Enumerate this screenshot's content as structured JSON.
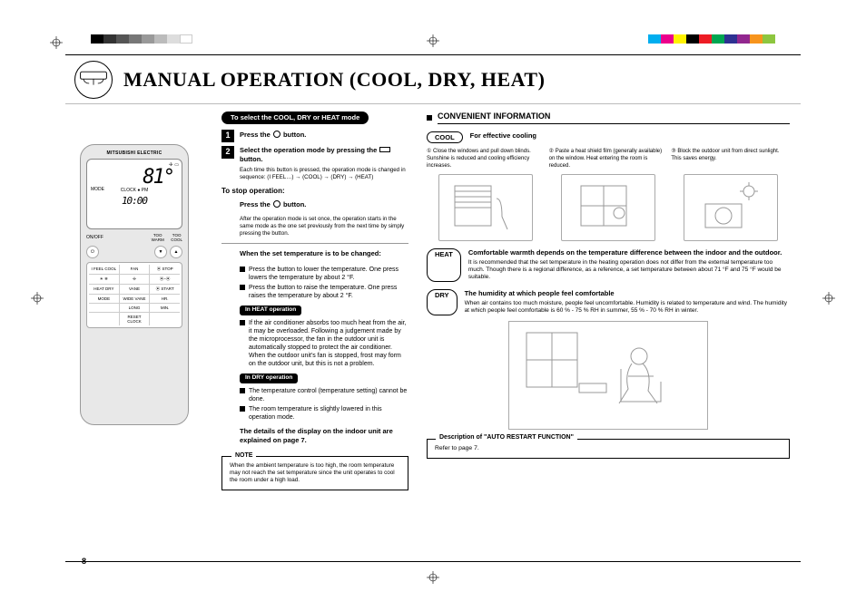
{
  "colorbar_left": [
    "#000",
    "#333",
    "#555",
    "#777",
    "#999",
    "#bbb",
    "#ddd",
    "#fff"
  ],
  "colorbar_right": [
    "#00aeef",
    "#ec008c",
    "#fff200",
    "#000",
    "#ed1c24",
    "#00a651",
    "#2e3192",
    "#92278f",
    "#f7941d",
    "#8dc63f"
  ],
  "header": {
    "title": "MANUAL OPERATION (COOL, DRY, HEAT)"
  },
  "remote": {
    "brand": "MITSUBISHI ELECTRIC",
    "temp": "81°",
    "clock_label": "CLOCK",
    "ampm": "PM",
    "clock": "10:00",
    "mode": "MODE",
    "row": {
      "onoff": "ON/OFF",
      "toowarm": "TOO\nWARM",
      "toocool": "TOO\nCOOL"
    },
    "grid": [
      [
        "I FEEL  COOL",
        "FAN",
        "⦿ STOP"
      ],
      [
        "☀ ❄",
        "✢",
        "⦿–⦿"
      ],
      [
        "HEAT  DRY",
        "VANE",
        "⦿ START"
      ],
      [
        "MODE",
        "WIDE VANE",
        "HR."
      ],
      [
        "",
        "LONG",
        "MIN."
      ],
      [
        "",
        "RESET   CLOCK",
        ""
      ]
    ]
  },
  "mid": {
    "pill": "To select the COOL, DRY or HEAT mode",
    "steps": [
      {
        "n": "1",
        "txt_a": "Press the",
        "txt_b": "button."
      },
      {
        "n": "2",
        "txt_a": "Select the operation mode by pressing the",
        "txt_b": "button."
      }
    ],
    "step2_note": "Each time this button is pressed, the operation mode is changed in sequence:  (I FEEL…) →  (COOL) →  (DRY) →  (HEAT)",
    "stop_head": "To stop operation:",
    "stop_txt_a": "Press the",
    "stop_txt_b": "button.",
    "stop_note": "After the operation mode is set once, the operation starts in the same mode as the one set previously from the next time by simply pressing the  button.",
    "change_head": "When the set temperature is to be changed:",
    "change_b1": "Press the  button to lower the temperature. One press lowers the temperature by about 2 °F.",
    "change_b2": "Press the  button to raise the temperature. One press raises the temperature by about 2 °F.",
    "heat_pill": "In HEAT operation",
    "heat_b": "If the air conditioner absorbs too much heat from the air, it may be overloaded. Following a judgement made by the microprocessor, the fan in the outdoor unit is automatically stopped to protect the air conditioner.\nWhen the outdoor unit's fan is stopped, frost may form on the outdoor unit, but this is not a problem.",
    "dry_pill": "In DRY operation",
    "dry_b1": "The temperature control (temperature setting) cannot be done.",
    "dry_b2": "The room temperature is slightly lowered in this operation mode.",
    "details": "The details of the display on the indoor unit are explained on page 7.",
    "note_label": "NOTE",
    "note_body": "When the ambient temperature is too high, the room temperature may not reach the set temperature since the unit operates to cool the room under a high load."
  },
  "right": {
    "conv": "CONVENIENT INFORMATION",
    "cool_pill": "COOL",
    "cool_head": "For effective cooling",
    "cool_cols": [
      "① Close the windows and pull down blinds. Sunshine is reduced and cooling efficiency increases.",
      "② Paste a heat shield film (generally available) on the window. Heat entering the room is reduced.",
      "③ Block the outdoor unit from direct sunlight. This saves energy."
    ],
    "heat_pill": "HEAT",
    "heat_head": "Comfortable warmth depends on the temperature difference between the indoor and the outdoor.",
    "heat_body": "It is recommended that the set temperature in the heating operation does not differ from the external temperature too much. Though there is a regional difference, as a reference, a set temperature between about 71 °F and 75 °F would be suitable.",
    "dry_pill": "DRY",
    "dry_head": "The humidity at which people feel comfortable",
    "dry_body": "When air contains too much moisture, people feel uncomfortable. Humidity is related to temperature and wind. The humidity at which people feel comfortable is 60 % - 75 % RH in summer, 55 % - 70 % RH in winter.",
    "desc_label": "Description of \"AUTO RESTART FUNCTION\"",
    "desc_body": "Refer to page 7."
  },
  "page_number": "8"
}
